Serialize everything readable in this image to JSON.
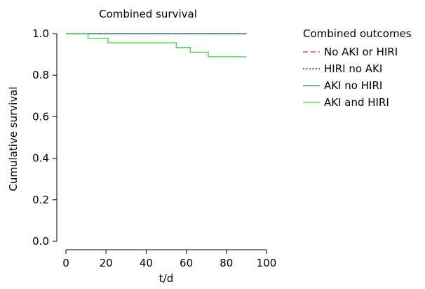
{
  "chart_data": {
    "type": "line",
    "title": "Combined survival",
    "xlabel": "t/d",
    "ylabel": "Cumulative survival",
    "xlim": [
      0,
      100
    ],
    "ylim": [
      0,
      1.0
    ],
    "xticks": [
      0,
      20,
      40,
      60,
      80,
      100
    ],
    "yticks": [
      0.0,
      0.2,
      0.4,
      0.6,
      0.8,
      1.0
    ],
    "xtick_labels": [
      "0",
      "20",
      "40",
      "60",
      "80",
      "100"
    ],
    "ytick_labels": [
      "0.0",
      "0.2",
      "0.4",
      "0.6",
      "0.8",
      "1.0"
    ],
    "grid": false,
    "legend": {
      "title": "Combined outcomes",
      "placement": "top-right, outside plot"
    },
    "series": [
      {
        "name": "No AKI or HIRI",
        "color": "#d62728",
        "dash": "dashed",
        "step": true,
        "points": [
          [
            0,
            1.0
          ],
          [
            90,
            1.0
          ]
        ]
      },
      {
        "name": "HIRI no AKI",
        "color": "#000000",
        "dash": "dotted",
        "step": true,
        "points": [
          [
            0,
            1.0
          ],
          [
            90,
            1.0
          ]
        ]
      },
      {
        "name": "AKI no HIRI",
        "color": "#1f77b4",
        "dash": "solid",
        "step": true,
        "points": [
          [
            0,
            1.0
          ],
          [
            90,
            1.0
          ]
        ]
      },
      {
        "name": "AKI and HIRI",
        "color": "#33dd33",
        "dash": "solid",
        "step": true,
        "points": [
          [
            0,
            1.0
          ],
          [
            11,
            0.978
          ],
          [
            21,
            0.956
          ],
          [
            55,
            0.933
          ],
          [
            62,
            0.911
          ],
          [
            71,
            0.889
          ],
          [
            90,
            0.889
          ]
        ]
      }
    ]
  }
}
